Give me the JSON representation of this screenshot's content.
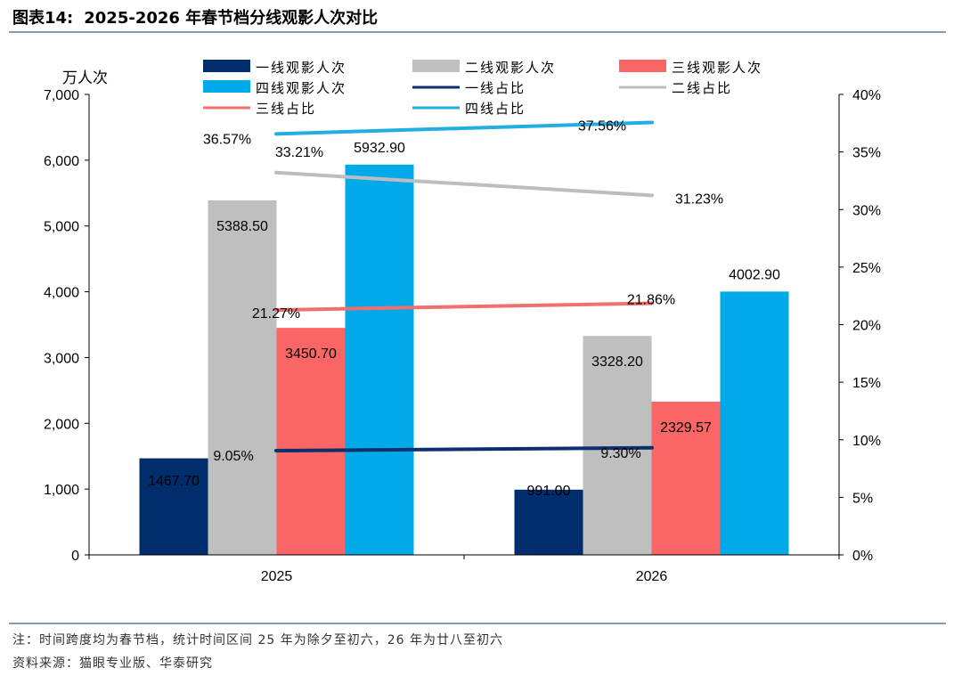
{
  "figure": {
    "label": "图表14:",
    "title": "2025-2026 年春节档分线观影人次对比"
  },
  "notes": {
    "line1": "注：时间跨度均为春节档，统计时间区间 25 年为除夕至初六，26 年为廿八至初六",
    "line2": "资料来源：猫眼专业版、华泰研究"
  },
  "chart_data": {
    "type": "bar",
    "categories": [
      "2025",
      "2026"
    ],
    "y_left": {
      "label": "万人次",
      "min": 0,
      "max": 7000,
      "ticks": [
        "0",
        "1,000",
        "2,000",
        "3,000",
        "4,000",
        "5,000",
        "6,000",
        "7,000"
      ]
    },
    "y_right": {
      "min": 0,
      "max": 40,
      "ticks": [
        "0%",
        "5%",
        "10%",
        "15%",
        "20%",
        "25%",
        "30%",
        "35%",
        "40%"
      ]
    },
    "bar_series": [
      {
        "name": "一线观影人次",
        "color": "#002d6b",
        "values": [
          1467.7,
          991.0
        ],
        "labels": [
          "1467.70",
          "991.00"
        ]
      },
      {
        "name": "二线观影人次",
        "color": "#bfbfbf",
        "values": [
          5388.5,
          3328.2
        ],
        "labels": [
          "5388.50",
          "3328.20"
        ]
      },
      {
        "name": "三线观影人次",
        "color": "#f96665",
        "values": [
          3450.7,
          2329.57
        ],
        "labels": [
          "3450.70",
          "2329.57"
        ]
      },
      {
        "name": "四线观影人次",
        "color": "#00a9e8",
        "values": [
          5932.9,
          4002.9
        ],
        "labels": [
          "5932.90",
          "4002.90"
        ]
      }
    ],
    "line_series": [
      {
        "name": "一线占比",
        "color": "#0c2f6e",
        "values": [
          9.05,
          9.3
        ],
        "labels": [
          "9.05%",
          "9.30%"
        ]
      },
      {
        "name": "二线占比",
        "color": "#bdbdbd",
        "values": [
          33.21,
          31.23
        ],
        "labels": [
          "33.21%",
          "31.23%"
        ]
      },
      {
        "name": "三线占比",
        "color": "#f07070",
        "values": [
          21.27,
          21.86
        ],
        "labels": [
          "21.27%",
          "21.86%"
        ]
      },
      {
        "name": "四线占比",
        "color": "#23aee3",
        "values": [
          36.57,
          37.56
        ],
        "labels": [
          "36.57%",
          "37.56%"
        ]
      }
    ],
    "legend_position": "top",
    "grid": false
  }
}
